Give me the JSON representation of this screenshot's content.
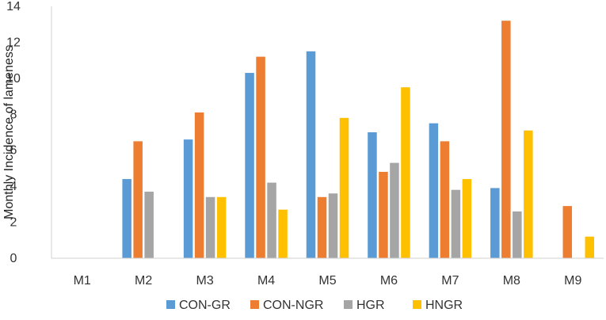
{
  "chart_data": {
    "type": "bar",
    "title": "",
    "xlabel": "",
    "ylabel": "Monthly Incidence of lameness",
    "ylim": [
      0,
      14
    ],
    "yticks": [
      0,
      2,
      4,
      6,
      8,
      10,
      12,
      14
    ],
    "grid": false,
    "legend_position": "bottom",
    "categories": [
      "M1",
      "M2",
      "M3",
      "M4",
      "M5",
      "M6",
      "M7",
      "M8",
      "M9"
    ],
    "series": [
      {
        "name": "CON-GR",
        "color": "#5B9BD5",
        "values": [
          0,
          4.4,
          6.6,
          10.3,
          11.5,
          7.0,
          7.5,
          3.9,
          0
        ]
      },
      {
        "name": "CON-NGR",
        "color": "#ED7D31",
        "values": [
          0,
          6.5,
          8.1,
          11.2,
          3.4,
          4.8,
          6.5,
          13.2,
          2.9
        ]
      },
      {
        "name": "HGR",
        "color": "#A5A5A5",
        "values": [
          0,
          3.7,
          3.4,
          4.2,
          3.6,
          5.3,
          3.8,
          2.6,
          0
        ]
      },
      {
        "name": "HNGR",
        "color": "#FFC000",
        "values": [
          0,
          0,
          3.4,
          2.7,
          7.8,
          9.5,
          4.4,
          7.1,
          1.2
        ]
      }
    ]
  }
}
